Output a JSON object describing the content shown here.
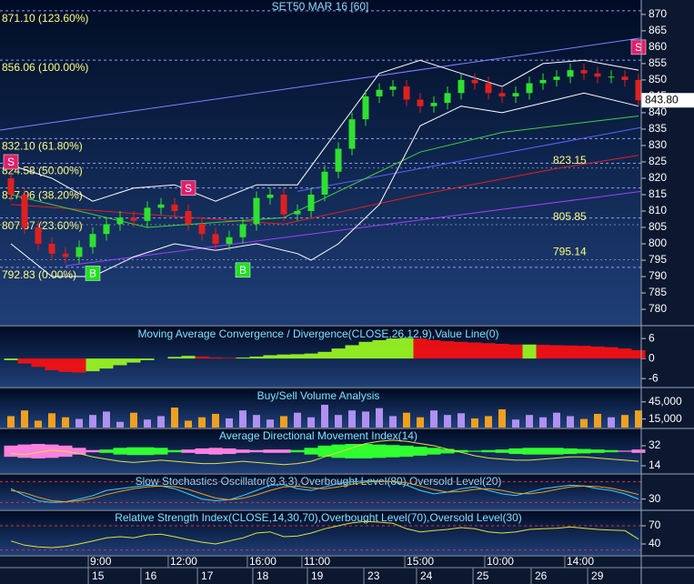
{
  "chart_data": [
    {
      "type": "candlestick",
      "title": "SET50 MAR 16  [60]",
      "xlim": [
        -0.8,
        46.2
      ],
      "ylim": [
        775.3,
        874.4
      ],
      "yticks": [
        780,
        785,
        790,
        795,
        800,
        805,
        810,
        815,
        820,
        825,
        830,
        835,
        840,
        845,
        850,
        855,
        860,
        865,
        870
      ],
      "up_color": "#30e030",
      "down_color": "#e02020",
      "open": [
        820,
        815,
        805,
        800,
        797,
        796,
        799,
        803,
        806,
        808,
        807,
        811,
        812,
        810,
        806,
        803,
        800,
        802,
        806,
        814,
        815,
        809,
        810,
        815,
        822,
        829,
        838,
        845,
        847,
        848,
        844,
        842,
        843,
        846,
        850,
        849,
        846,
        845,
        846,
        849,
        850,
        851,
        853,
        852,
        851,
        851,
        850
      ],
      "high": [
        822,
        817,
        807,
        802,
        799,
        801,
        805,
        808,
        810,
        810,
        813,
        814,
        814,
        812,
        808,
        805,
        804,
        808,
        816,
        817,
        817,
        812,
        817,
        824,
        831,
        840,
        847,
        849,
        850,
        850,
        846,
        845,
        848,
        852,
        852,
        851,
        848,
        848,
        851,
        852,
        853,
        855,
        855,
        854,
        853,
        853,
        852
      ],
      "low": [
        813,
        803,
        798,
        795,
        794,
        794,
        797,
        801,
        804,
        805,
        805,
        809,
        808,
        804,
        801,
        798,
        798,
        800,
        804,
        812,
        807,
        807,
        808,
        813,
        820,
        827,
        836,
        843,
        845,
        842,
        840,
        840,
        841,
        844,
        847,
        844,
        843,
        843,
        844,
        847,
        848,
        849,
        850,
        849,
        849,
        848,
        842
      ],
      "close": [
        815,
        805,
        800,
        797,
        796,
        799,
        803,
        806,
        808,
        807,
        811,
        812,
        810,
        806,
        803,
        800,
        802,
        806,
        814,
        815,
        809,
        810,
        815,
        822,
        829,
        838,
        845,
        847,
        848,
        844,
        842,
        843,
        846,
        850,
        849,
        846,
        845,
        846,
        849,
        850,
        851,
        853,
        852,
        851,
        851,
        850,
        843.8
      ],
      "last_price": {
        "value": 843.8,
        "label": "843.80"
      },
      "levels": [
        {
          "value": 871.1,
          "label": "871.10 (123.60%)"
        },
        {
          "value": 856.06,
          "label": "856.06 (100.00%)"
        },
        {
          "value": 832.1,
          "label": "832.10 (61.80%)"
        },
        {
          "value": 824.58,
          "label": "824.58 (50.00%)"
        },
        {
          "value": 817.06,
          "label": "817.06 (38.20%)"
        },
        {
          "value": 807.87,
          "label": "807.87 (23.60%)"
        },
        {
          "value": 792.83,
          "label": "792.83 (0.00%)"
        }
      ],
      "marks": [
        {
          "value": 823.15,
          "label": "823.15"
        },
        {
          "value": 805.85,
          "label": "805.85"
        },
        {
          "value": 795.14,
          "label": "795.14"
        }
      ],
      "overlays": [
        {
          "color": "#8080ff",
          "x": [
            -0.8,
            46.2
          ],
          "values": [
            834.7,
            862.8
          ]
        },
        {
          "color": "#6060ff",
          "x": [
            21,
            46.2
          ],
          "values": [
            816,
            835.5
          ]
        },
        {
          "color": "#a040ff",
          "x": [
            4,
            46.2
          ],
          "values": [
            793.3,
            816
          ]
        },
        {
          "color": "#e02020",
          "x": [
            0,
            20,
            30,
            40,
            46
          ],
          "values": [
            812,
            806,
            815,
            823,
            827
          ]
        },
        {
          "color": "#40d040",
          "x": [
            0,
            10,
            20,
            26,
            30,
            36,
            46
          ],
          "values": [
            815,
            805,
            808,
            820,
            828,
            834,
            839
          ]
        },
        {
          "color": "#ffffff",
          "x": [
            0,
            3,
            6,
            9,
            12,
            15,
            18,
            21,
            24,
            27,
            30,
            33,
            36,
            39,
            42,
            46
          ],
          "values": [
            824,
            820,
            813,
            817,
            818,
            813,
            818,
            818,
            835,
            852,
            856,
            852,
            848,
            855,
            856,
            853
          ]
        },
        {
          "color": "#ffffff",
          "x": [
            0,
            3,
            6,
            9,
            12,
            15,
            18,
            21,
            22,
            24,
            27,
            30,
            33,
            36,
            39,
            42,
            46
          ],
          "values": [
            800,
            790,
            790,
            796,
            800,
            798,
            800,
            797,
            795,
            800,
            812,
            836,
            842,
            840,
            843,
            846,
            842
          ]
        }
      ],
      "signals": [
        {
          "x": 0,
          "value": 825,
          "label": "S",
          "color": "#e0206a"
        },
        {
          "x": 6,
          "value": 791,
          "label": "B",
          "color": "#20e020"
        },
        {
          "x": 13,
          "value": 817,
          "label": "S",
          "color": "#e0206a"
        },
        {
          "x": 17,
          "value": 792,
          "label": "B",
          "color": "#20e020"
        },
        {
          "x": 46,
          "value": 860,
          "label": "S",
          "color": "#e0206a"
        }
      ],
      "xticks": [
        {
          "value": 5.67,
          "label": "9:00"
        },
        {
          "value": 11.53,
          "label": "12:00"
        },
        {
          "value": 17.33,
          "label": "16:00"
        },
        {
          "value": 21.33,
          "label": "11:00"
        },
        {
          "value": 28.87,
          "label": "15:00"
        },
        {
          "value": 34.73,
          "label": "10:00"
        },
        {
          "value": 40.6,
          "label": "14:00"
        }
      ],
      "date_ticks": [
        {
          "value": 5.67,
          "label": "15"
        },
        {
          "value": 9.53,
          "label": "16"
        },
        {
          "value": 13.67,
          "label": "17"
        },
        {
          "value": 17.73,
          "label": "18"
        },
        {
          "value": 21.73,
          "label": "19"
        },
        {
          "value": 25.87,
          "label": "23"
        },
        {
          "value": 29.73,
          "label": "24"
        },
        {
          "value": 33.87,
          "label": "25"
        },
        {
          "value": 38.13,
          "label": "26"
        },
        {
          "value": 42.27,
          "label": "29"
        }
      ]
    },
    {
      "type": "histogram",
      "title": "Moving Average Convergence / Divergence(CLOSE,26,12,9),Value Line(0)",
      "ylim": [
        -8.4,
        9.3
      ],
      "yticks": [
        6,
        0,
        -6
      ],
      "up_color": "#a0ff20",
      "down_color": "#ff1010",
      "values": [
        -0.5,
        -1.5,
        -2.5,
        -3.5,
        -4,
        -4.2,
        -3.8,
        -3,
        -2,
        -1.2,
        -0.5,
        0,
        0.5,
        0.8,
        0.6,
        0.3,
        0.2,
        0.3,
        0.6,
        1,
        1.2,
        1.3,
        1.5,
        2,
        3,
        4,
        5,
        5.5,
        6,
        6.2,
        6,
        5.5,
        5.2,
        5,
        4.8,
        4.6,
        4.4,
        4.2,
        4.2,
        4.1,
        4,
        3.9,
        3.8,
        3.6,
        3.4,
        3,
        2.5
      ]
    },
    {
      "type": "bar",
      "title": "Buy/Sell Volume Analysis",
      "ylim": [
        0,
        67000
      ],
      "yticks": [
        {
          "value": 45000,
          "label": "45,000"
        },
        {
          "value": 15000,
          "label": "15,000"
        }
      ],
      "up_color": "#b090f0",
      "down_color": "#f0a020",
      "values": [
        20000,
        30000,
        12000,
        25000,
        18000,
        15000,
        22000,
        28000,
        10000,
        26000,
        14000,
        20000,
        35000,
        12000,
        18000,
        24000,
        16000,
        30000,
        22000,
        14000,
        20000,
        26000,
        18000,
        40000,
        22000,
        30000,
        28000,
        34000,
        20000,
        26000,
        18000,
        30000,
        22000,
        25000,
        16000,
        20000,
        32000,
        14000,
        22000,
        18000,
        26000,
        20000,
        15000,
        24000,
        18000,
        22000,
        30000
      ]
    },
    {
      "type": "dmi",
      "title": "Average Directional Movement Index(14)",
      "ylim": [
        7.5,
        46.7
      ],
      "yticks": [
        32,
        14
      ],
      "up_color": "#30ff30",
      "down_color": "#ff80e0",
      "line_color": "#e0e040",
      "spread": [
        -10,
        -12,
        -13,
        -12,
        -10,
        -6,
        -2,
        3,
        6,
        7,
        7,
        6,
        2,
        -3,
        -5,
        -6,
        -5,
        -3,
        -2,
        -3,
        -3,
        2,
        6,
        10,
        12,
        13,
        13,
        12,
        11,
        10,
        8,
        6,
        4,
        2,
        1,
        2,
        3,
        5,
        6,
        6,
        6,
        5,
        4,
        3,
        2,
        -1,
        -3
      ],
      "values": [
        25,
        24,
        26,
        28,
        27,
        25,
        22,
        20,
        18,
        17,
        18,
        19,
        18,
        17,
        16,
        16,
        17,
        18,
        17,
        16,
        15,
        16,
        18,
        22,
        26,
        30,
        34,
        36,
        37,
        36,
        34,
        32,
        29,
        26,
        23,
        21,
        20,
        19,
        19,
        20,
        21,
        22,
        22,
        21,
        20,
        19,
        18
      ]
    },
    {
      "type": "line",
      "title": "Slow Stochastics Oscillator(9,3,3),Overbought Level(80),Oversold Level(20)",
      "ylim": [
        0,
        100
      ],
      "yticks": [
        30
      ],
      "levels": [
        80,
        20
      ],
      "series": [
        {
          "color": "#40d0ff",
          "values": [
            60,
            40,
            25,
            20,
            22,
            30,
            40,
            55,
            60,
            65,
            70,
            68,
            60,
            45,
            30,
            25,
            28,
            40,
            55,
            70,
            72,
            60,
            55,
            65,
            75,
            80,
            82,
            82,
            80,
            70,
            55,
            45,
            50,
            60,
            65,
            55,
            45,
            40,
            50,
            60,
            65,
            70,
            68,
            60,
            55,
            45,
            30
          ]
        },
        {
          "color": "#f0a020",
          "values": [
            55,
            48,
            35,
            25,
            22,
            25,
            32,
            43,
            52,
            60,
            65,
            68,
            66,
            58,
            45,
            33,
            28,
            32,
            42,
            55,
            65,
            67,
            62,
            60,
            65,
            73,
            79,
            81,
            81,
            77,
            68,
            57,
            50,
            52,
            58,
            60,
            55,
            47,
            45,
            50,
            58,
            65,
            68,
            66,
            61,
            53,
            43
          ]
        }
      ]
    },
    {
      "type": "line",
      "title": "Relative Strength Index(CLOSE,14,30,70),Overbought Level(70),Oversold Level(30)",
      "ylim": [
        22,
        94
      ],
      "yticks": [
        70,
        40
      ],
      "levels": [
        70,
        30
      ],
      "series": [
        {
          "color": "#e0e040",
          "values": [
            45,
            38,
            35,
            34,
            36,
            40,
            45,
            50,
            52,
            50,
            55,
            56,
            52,
            47,
            43,
            40,
            45,
            50,
            58,
            60,
            52,
            53,
            58,
            65,
            70,
            75,
            77,
            76,
            74,
            65,
            60,
            62,
            64,
            67,
            65,
            60,
            58,
            60,
            64,
            65,
            66,
            68,
            66,
            64,
            63,
            62,
            48
          ]
        }
      ]
    }
  ]
}
